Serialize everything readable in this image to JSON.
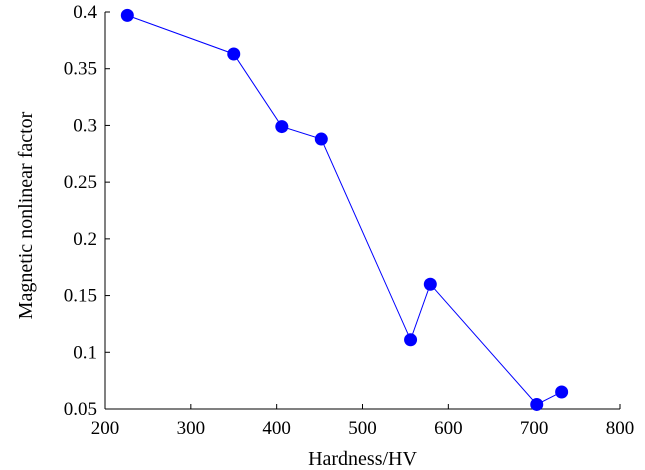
{
  "chart_data": {
    "type": "line",
    "title": "",
    "xlabel": "Hardness/HV",
    "ylabel": "Magnetic nonlinear factor",
    "xlim": [
      200,
      800
    ],
    "ylim": [
      0.05,
      0.4
    ],
    "xticks": [
      200,
      300,
      400,
      500,
      600,
      700,
      800
    ],
    "xtick_labels": [
      "200",
      "300",
      "400",
      "500",
      "600",
      "700",
      "800"
    ],
    "yticks": [
      0.05,
      0.1,
      0.15,
      0.2,
      0.25,
      0.3,
      0.35,
      0.4
    ],
    "ytick_labels": [
      "0.05",
      "0.1",
      "0.15",
      "0.2",
      "0.25",
      "0.3",
      "0.35",
      "0.4"
    ],
    "grid": false,
    "legend": "none",
    "series": [
      {
        "color": "#0000ff",
        "marker": "circle",
        "x": [
          226,
          350,
          406,
          452,
          556,
          579,
          703,
          732
        ],
        "y": [
          0.397,
          0.363,
          0.299,
          0.288,
          0.111,
          0.16,
          0.054,
          0.065
        ]
      }
    ]
  }
}
